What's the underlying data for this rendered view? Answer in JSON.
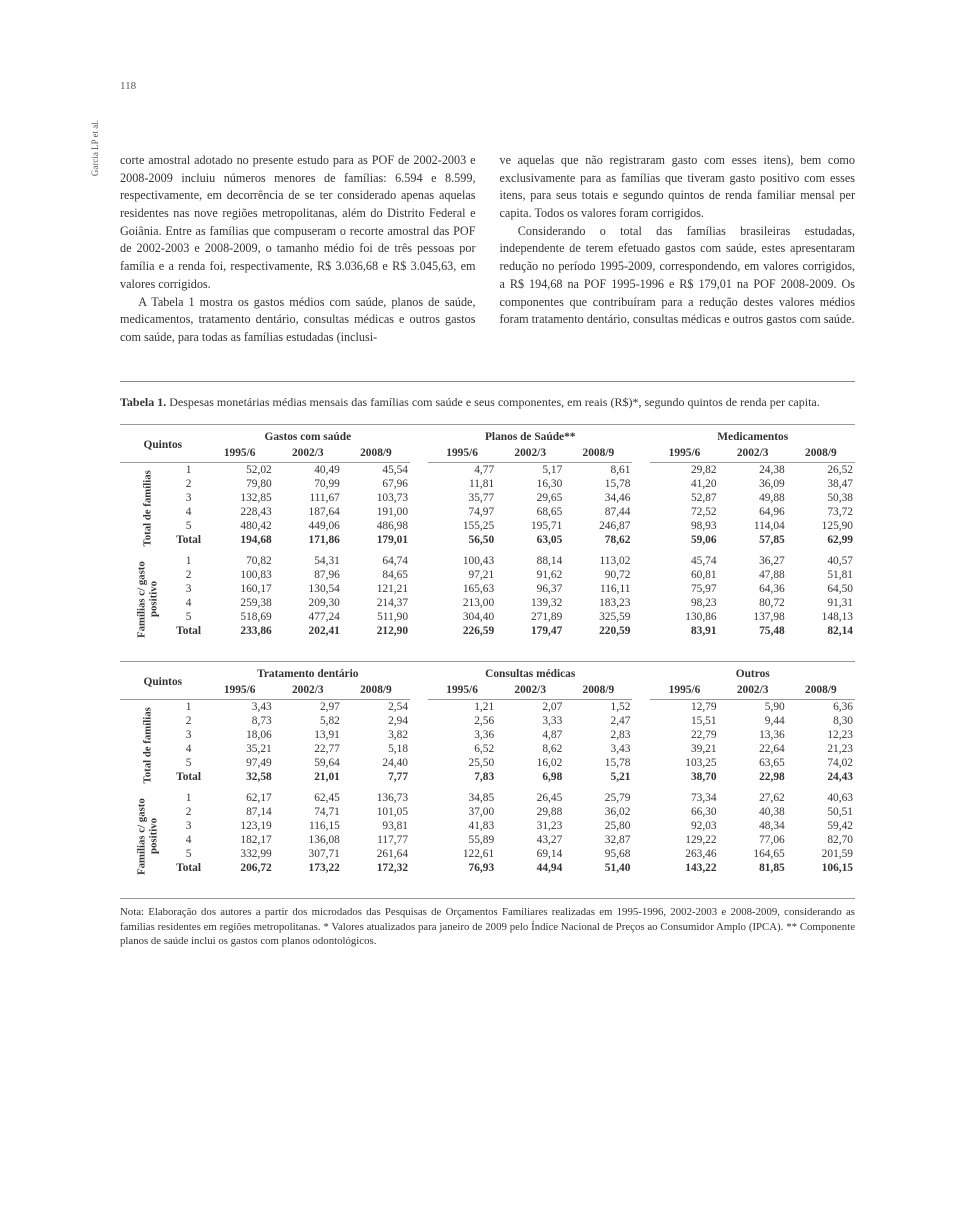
{
  "page_number": "118",
  "author_ref": "Garcia LP et al.",
  "body": {
    "left": "corte amostral adotado no presente estudo para as POF de 2002-2003 e 2008-2009 incluiu números menores de famílias: 6.594 e 8.599, respectivamente, em decorrência de se ter considerado apenas aquelas residentes nas nove regiões metropolitanas, além do Distrito Federal e Goiânia. Entre as famílias que compuseram o recorte amostral das POF de 2002-2003 e 2008-2009, o tamanho médio foi de três pessoas por família e a renda foi, respectivamente, R$ 3.036,68 e R$ 3.045,63, em valores corrigidos.",
    "left2": "A Tabela 1 mostra os gastos médios com saúde, planos de saúde, medicamentos, tratamento dentário, consultas médicas e outros gastos com saúde, para todas as famílias estudadas (inclusi-",
    "right": "ve aquelas que não registraram gasto com esses itens), bem como exclusivamente para as famílias que tiveram gasto positivo com esses itens, para seus totais e segundo quintos de renda familiar mensal per capita. Todos os valores foram corrigidos.",
    "right2": "Considerando o total das famílias brasileiras estudadas, independente de terem efetuado gastos com saúde, estes apresentaram redução no período 1995-2009, correspondendo, em valores corrigidos, a R$ 194,68 na POF 1995-1996 e R$ 179,01 na POF 2008-2009. Os componentes que contribuíram para a redução destes valores médios foram tratamento dentário, consultas médicas e outros gastos com saúde."
  },
  "table": {
    "label": "Tabela 1.",
    "caption": "Despesas monetárias médias mensais das famílias com saúde e seus componentes, em reais (R$)*, segundo quintos de renda per capita.",
    "quintos_label": "Quintos",
    "years": [
      "1995/6",
      "2002/3",
      "2008/9"
    ],
    "row_labels": [
      "1",
      "2",
      "3",
      "4",
      "5",
      "Total"
    ],
    "block_labels": {
      "total": "Total de famílias",
      "positivo": "Famílias c/ gasto\npositivo"
    },
    "panel1": {
      "sections": [
        "Gastos com saúde",
        "Planos de Saúde**",
        "Medicamentos"
      ],
      "total": [
        [
          "52,02",
          "40,49",
          "45,54",
          "4,77",
          "5,17",
          "8,61",
          "29,82",
          "24,38",
          "26,52"
        ],
        [
          "79,80",
          "70,99",
          "67,96",
          "11,81",
          "16,30",
          "15,78",
          "41,20",
          "36,09",
          "38,47"
        ],
        [
          "132,85",
          "111,67",
          "103,73",
          "35,77",
          "29,65",
          "34,46",
          "52,87",
          "49,88",
          "50,38"
        ],
        [
          "228,43",
          "187,64",
          "191,00",
          "74,97",
          "68,65",
          "87,44",
          "72,52",
          "64,96",
          "73,72"
        ],
        [
          "480,42",
          "449,06",
          "486,98",
          "155,25",
          "195,71",
          "246,87",
          "98,93",
          "114,04",
          "125,90"
        ],
        [
          "194,68",
          "171,86",
          "179,01",
          "56,50",
          "63,05",
          "78,62",
          "59,06",
          "57,85",
          "62,99"
        ]
      ],
      "positivo": [
        [
          "70,82",
          "54,31",
          "64,74",
          "100,43",
          "88,14",
          "113,02",
          "45,74",
          "36,27",
          "40,57"
        ],
        [
          "100,83",
          "87,96",
          "84,65",
          "97,21",
          "91,62",
          "90,72",
          "60,81",
          "47,88",
          "51,81"
        ],
        [
          "160,17",
          "130,54",
          "121,21",
          "165,63",
          "96,37",
          "116,11",
          "75,97",
          "64,36",
          "64,50"
        ],
        [
          "259,38",
          "209,30",
          "214,37",
          "213,00",
          "139,32",
          "183,23",
          "98,23",
          "80,72",
          "91,31"
        ],
        [
          "518,69",
          "477,24",
          "511,90",
          "304,40",
          "271,89",
          "325,59",
          "130,86",
          "137,98",
          "148,13"
        ],
        [
          "233,86",
          "202,41",
          "212,90",
          "226,59",
          "179,47",
          "220,59",
          "83,91",
          "75,48",
          "82,14"
        ]
      ]
    },
    "panel2": {
      "sections": [
        "Tratamento dentário",
        "Consultas médicas",
        "Outros"
      ],
      "total": [
        [
          "3,43",
          "2,97",
          "2,54",
          "1,21",
          "2,07",
          "1,52",
          "12,79",
          "5,90",
          "6,36"
        ],
        [
          "8,73",
          "5,82",
          "2,94",
          "2,56",
          "3,33",
          "2,47",
          "15,51",
          "9,44",
          "8,30"
        ],
        [
          "18,06",
          "13,91",
          "3,82",
          "3,36",
          "4,87",
          "2,83",
          "22,79",
          "13,36",
          "12,23"
        ],
        [
          "35,21",
          "22,77",
          "5,18",
          "6,52",
          "8,62",
          "3,43",
          "39,21",
          "22,64",
          "21,23"
        ],
        [
          "97,49",
          "59,64",
          "24,40",
          "25,50",
          "16,02",
          "15,78",
          "103,25",
          "63,65",
          "74,02"
        ],
        [
          "32,58",
          "21,01",
          "7,77",
          "7,83",
          "6,98",
          "5,21",
          "38,70",
          "22,98",
          "24,43"
        ]
      ],
      "positivo": [
        [
          "62,17",
          "62,45",
          "136,73",
          "34,85",
          "26,45",
          "25,79",
          "73,34",
          "27,62",
          "40,63"
        ],
        [
          "87,14",
          "74,71",
          "101,05",
          "37,00",
          "29,88",
          "36,02",
          "66,30",
          "40,38",
          "50,51"
        ],
        [
          "123,19",
          "116,15",
          "93,81",
          "41,83",
          "31,23",
          "25,80",
          "92,03",
          "48,34",
          "59,42"
        ],
        [
          "182,17",
          "136,08",
          "117,77",
          "55,89",
          "43,27",
          "32,87",
          "129,22",
          "77,06",
          "82,70"
        ],
        [
          "332,99",
          "307,71",
          "261,64",
          "122,61",
          "69,14",
          "95,68",
          "263,46",
          "164,65",
          "201,59"
        ],
        [
          "206,72",
          "173,22",
          "172,32",
          "76,93",
          "44,94",
          "51,40",
          "143,22",
          "81,85",
          "106,15"
        ]
      ]
    },
    "note": "Nota: Elaboração dos autores a partir dos microdados das Pesquisas de Orçamentos Familiares realizadas em 1995-1996, 2002-2003 e 2008-2009, considerando as famílias residentes em regiões metropolitanas. * Valores atualizados para janeiro de 2009 pelo Índice Nacional de Preços ao Consumidor Amplo (IPCA). ** Componente planos de saúde inclui os gastos com planos odontológicos."
  }
}
